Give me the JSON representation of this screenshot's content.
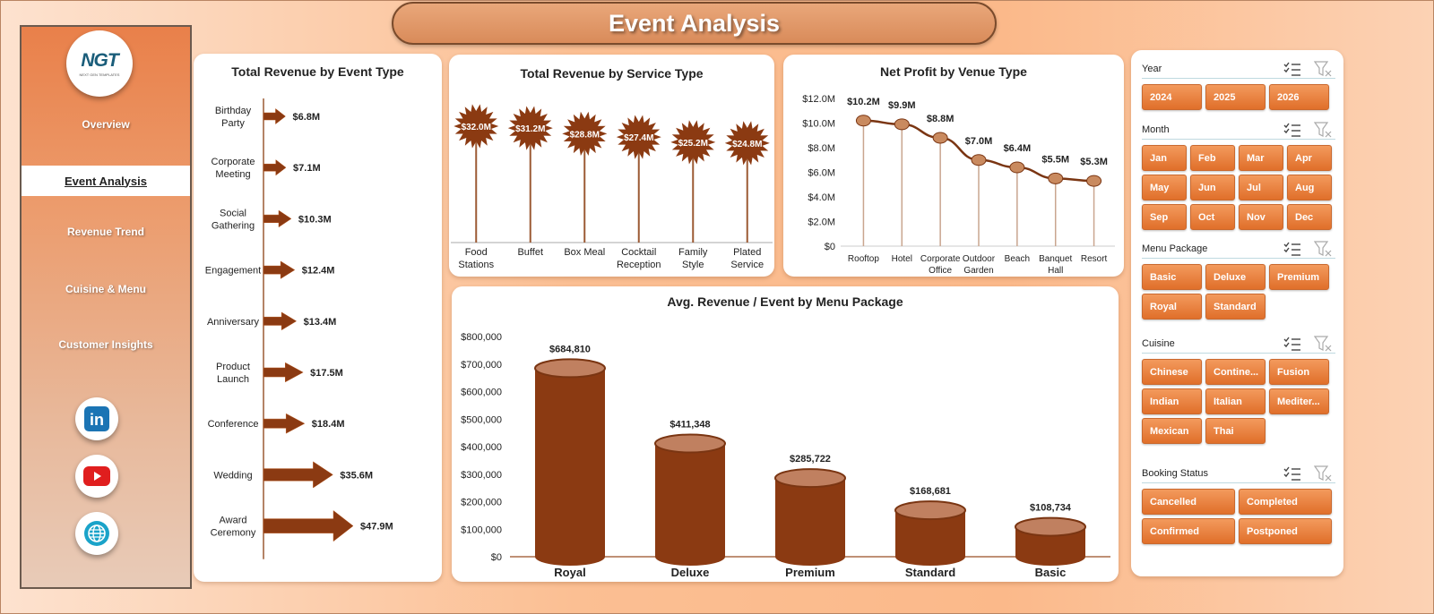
{
  "title": "Event Analysis",
  "logo": {
    "text": "NGT",
    "subtext": "NEXT GEN TEMPLATES"
  },
  "nav": [
    {
      "label": "Overview",
      "active": false
    },
    {
      "label": "Event Analysis",
      "active": true
    },
    {
      "label": "Revenue Trend",
      "active": false
    },
    {
      "label": "Cuisine & Menu",
      "active": false
    },
    {
      "label": "Customer Insights",
      "active": false
    }
  ],
  "social": {
    "linkedin": "in"
  },
  "colors": {
    "accent": "#e06f2a",
    "mark": "#8b3a12",
    "mark_light": "#b5561f",
    "stem": "#9c5a34"
  },
  "slicers": {
    "year": {
      "title": "Year",
      "items": [
        "2024",
        "2025",
        "2026"
      ]
    },
    "month": {
      "title": "Month",
      "items": [
        "Jan",
        "Feb",
        "Mar",
        "Apr",
        "May",
        "Jun",
        "Jul",
        "Aug",
        "Sep",
        "Oct",
        "Nov",
        "Dec"
      ]
    },
    "menu_package": {
      "title": "Menu Package",
      "items": [
        "Basic",
        "Deluxe",
        "Premium",
        "Royal",
        "Standard"
      ]
    },
    "cuisine": {
      "title": "Cuisine",
      "items": [
        "Chinese",
        "Contine...",
        "Fusion",
        "Indian",
        "Italian",
        "Mediter...",
        "Mexican",
        "Thai"
      ]
    },
    "booking_status": {
      "title": "Booking Status",
      "items": [
        "Cancelled",
        "Completed",
        "Confirmed",
        "Postponed"
      ]
    }
  },
  "chart_data": [
    {
      "type": "bar",
      "orientation": "horizontal",
      "title": "Total Revenue  by Event Type",
      "categories": [
        "Birthday Party",
        "Corporate Meeting",
        "Social Gathering",
        "Engagement",
        "Anniversary",
        "Product Launch",
        "Conference",
        "Wedding",
        "Award Ceremony"
      ],
      "values": [
        6.8,
        7.1,
        10.3,
        12.4,
        13.4,
        17.5,
        18.4,
        35.6,
        47.9
      ],
      "labels": [
        "$6.8M",
        "$7.1M",
        "$10.3M",
        "$12.4M",
        "$13.4M",
        "$17.5M",
        "$18.4M",
        "$35.6M",
        "$47.9M"
      ]
    },
    {
      "type": "bar",
      "title": "Total Revenue  by Service Type",
      "categories": [
        "Food Stations",
        "Buffet",
        "Box Meal",
        "Cocktail Reception",
        "Family Style",
        "Plated Service"
      ],
      "values": [
        32.0,
        31.2,
        28.8,
        27.4,
        25.2,
        24.8
      ],
      "labels": [
        "$32.0M",
        "$31.2M",
        "$28.8M",
        "$27.4M",
        "$25.2M",
        "$24.8M"
      ]
    },
    {
      "type": "line",
      "title": "Net Profit by Venue Type",
      "categories": [
        "Rooftop",
        "Hotel",
        "Corporate Office",
        "Outdoor Garden",
        "Beach",
        "Banquet Hall",
        "Resort"
      ],
      "values": [
        10.2,
        9.9,
        8.8,
        7.0,
        6.4,
        5.5,
        5.3
      ],
      "labels": [
        "$10.2M",
        "$9.9M",
        "$8.8M",
        "$7.0M",
        "$6.4M",
        "$5.5M",
        "$5.3M"
      ],
      "ylim": [
        0,
        12
      ],
      "yticks": [
        "$0",
        "$2.0M",
        "$4.0M",
        "$6.0M",
        "$8.0M",
        "$10.0M",
        "$12.0M"
      ]
    },
    {
      "type": "bar",
      "title": "Avg. Revenue  / Event by Menu Package",
      "categories": [
        "Royal",
        "Deluxe",
        "Premium",
        "Standard",
        "Basic"
      ],
      "values": [
        684810,
        411348,
        285722,
        168681,
        108734
      ],
      "labels": [
        "$684,810",
        "$411,348",
        "$285,722",
        "$168,681",
        "$108,734"
      ],
      "ylim": [
        0,
        800000
      ],
      "yticks": [
        "$0",
        "$100,000",
        "$200,000",
        "$300,000",
        "$400,000",
        "$500,000",
        "$600,000",
        "$700,000",
        "$800,000"
      ]
    }
  ]
}
